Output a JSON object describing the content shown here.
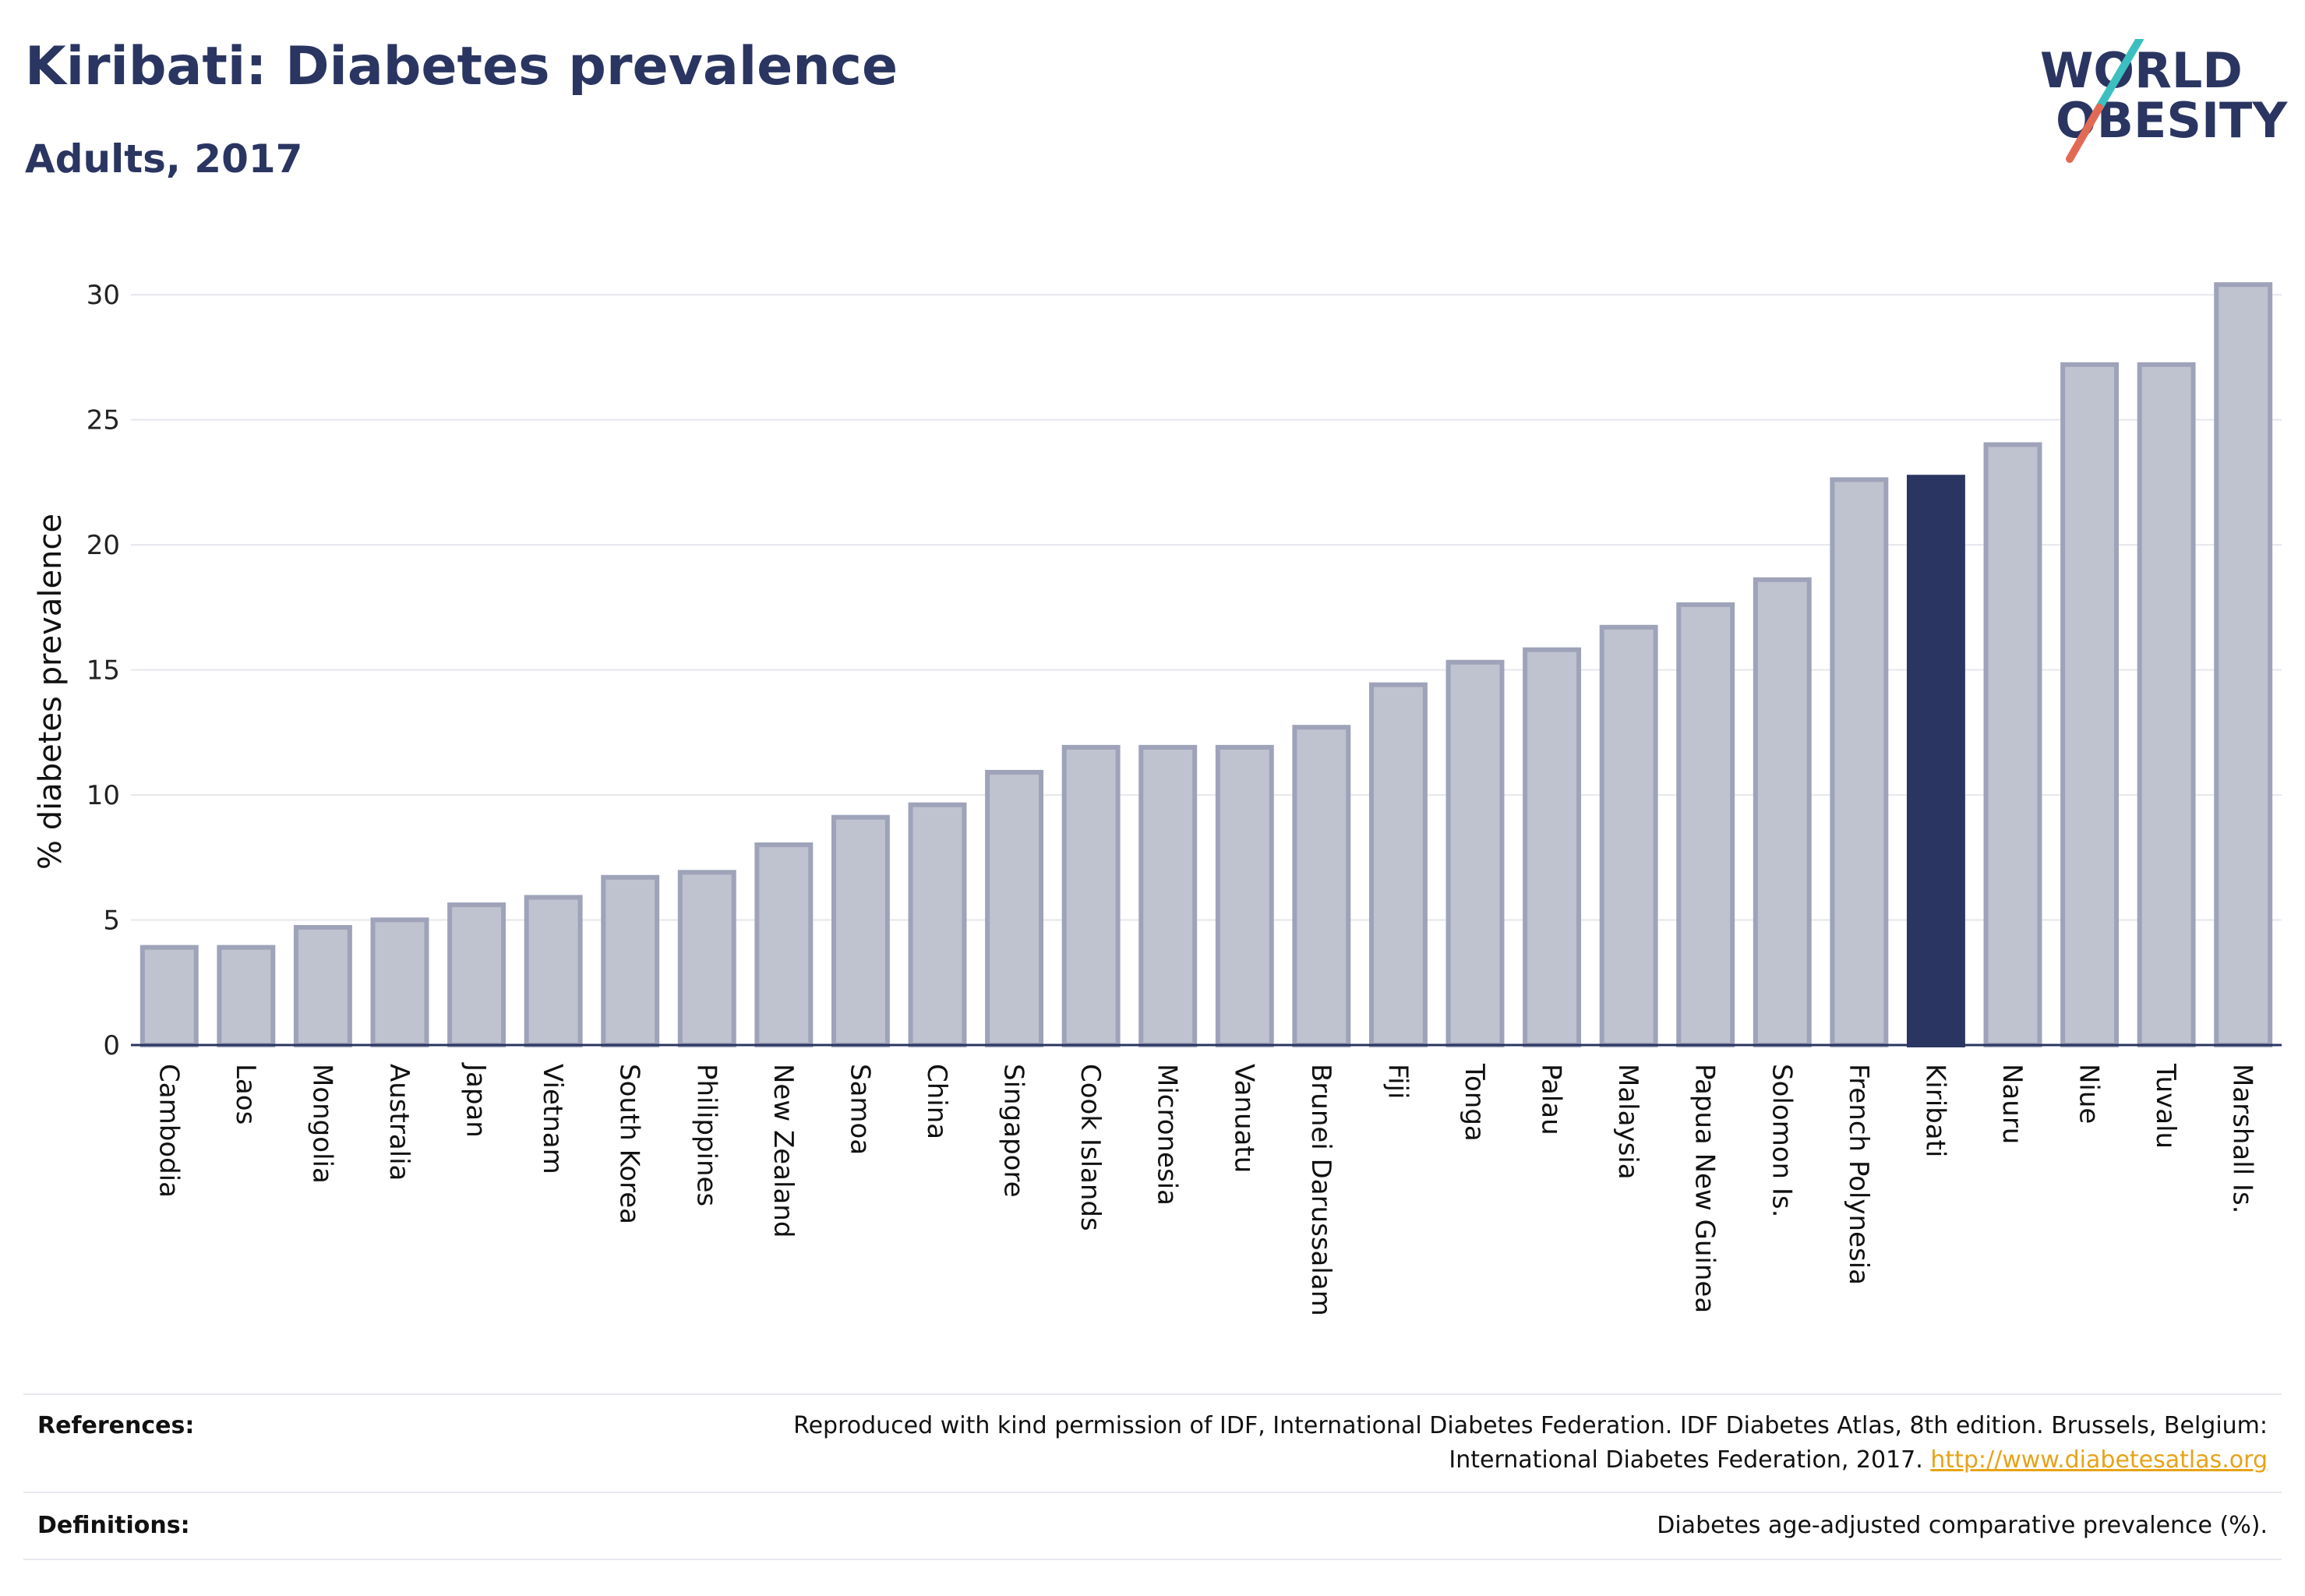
{
  "header": {
    "title": "Kiribati: Diabetes prevalence",
    "subtitle": "Adults, 2017"
  },
  "logo": {
    "line1": "WORLD",
    "line2": "OBESITY",
    "colors": {
      "text": "#2a3561",
      "slash_top": "#3bbfbf",
      "slash_bottom": "#e26a55"
    }
  },
  "chart_data": {
    "type": "bar",
    "title": "Kiribati: Diabetes prevalence",
    "subtitle": "Adults, 2017",
    "xlabel": "",
    "ylabel": "% diabetes prevalence",
    "ylim": [
      0,
      32
    ],
    "yticks": [
      0,
      5,
      10,
      15,
      20,
      25,
      30
    ],
    "grid": true,
    "legend": "none",
    "highlight": "Kiribati",
    "colors": {
      "bar": "#bfc2cf",
      "bar_edge": "#9ea3b9",
      "highlight": "#2a3561",
      "grid": "#e6e7ed",
      "axis": "#2a3561"
    },
    "categories": [
      "Cambodia",
      "Laos",
      "Mongolia",
      "Australia",
      "Japan",
      "Vietnam",
      "South Korea",
      "Philippines",
      "New Zealand",
      "Samoa",
      "China",
      "Singapore",
      "Cook Islands",
      "Micronesia",
      "Vanuatu",
      "Brunei Darussalam",
      "Fiji",
      "Tonga",
      "Palau",
      "Malaysia",
      "Papua New Guinea",
      "Solomon Is.",
      "French Polynesia",
      "Kiribati",
      "Nauru",
      "Niue",
      "Tuvalu",
      "Marshall Is."
    ],
    "values": [
      4.0,
      4.0,
      4.8,
      5.1,
      5.7,
      6.0,
      6.8,
      7.0,
      8.1,
      9.2,
      9.7,
      11.0,
      12.0,
      12.0,
      12.0,
      12.8,
      14.5,
      15.4,
      15.9,
      16.8,
      17.7,
      18.7,
      22.7,
      22.8,
      24.1,
      27.3,
      27.3,
      30.5
    ]
  },
  "footer": {
    "references_label": "References:",
    "references_line1": "Reproduced with kind permission of IDF, International Diabetes Federation. IDF Diabetes Atlas, 8th edition. Brussels, Belgium:",
    "references_line2": "International Diabetes Federation, 2017.",
    "references_link": "http://www.diabetesatlas.org",
    "definitions_label": "Definitions:",
    "definitions_text": "Diabetes age-adjusted comparative prevalence (%)."
  }
}
